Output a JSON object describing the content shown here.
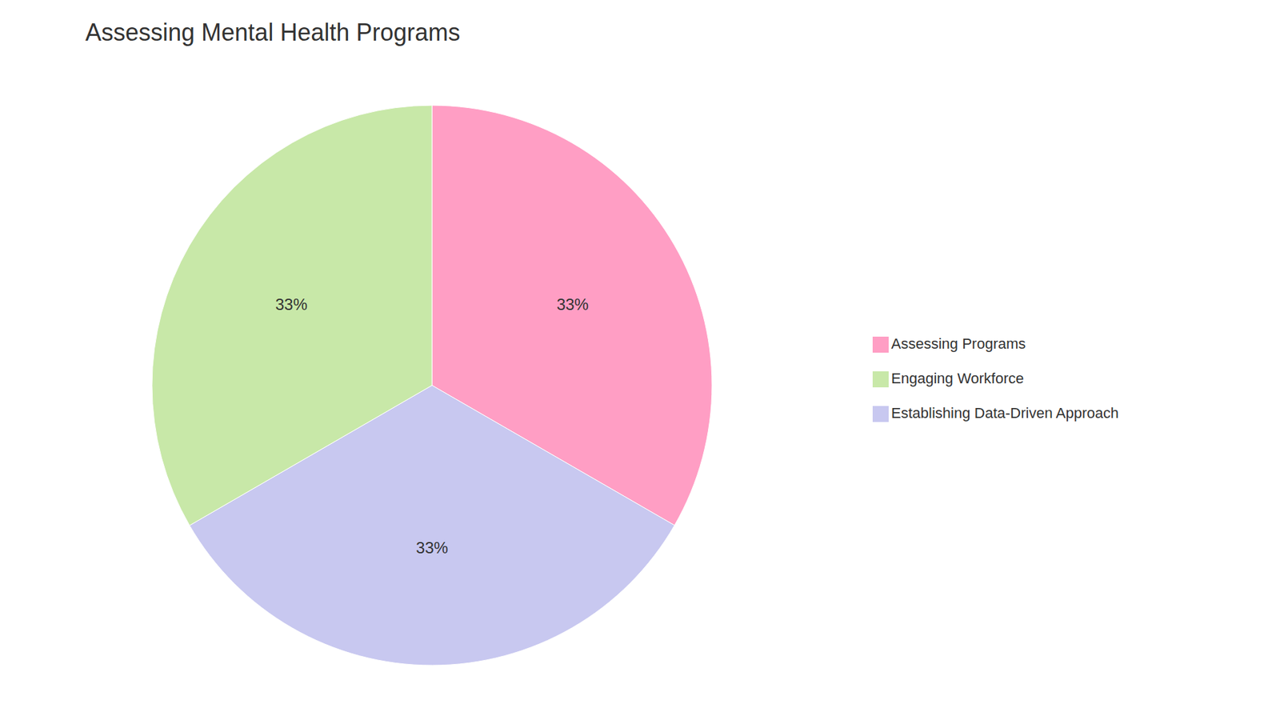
{
  "chart_data": {
    "type": "pie",
    "title": "Assessing Mental Health Programs",
    "categories": [
      "Assessing Programs",
      "Establishing Data-Driven Approach",
      "Engaging Workforce"
    ],
    "values": [
      33.33,
      33.33,
      33.34
    ],
    "value_labels": [
      "33%",
      "33%",
      "33%"
    ],
    "colors": [
      "#FF9EC4",
      "#C8C8F0",
      "#C8E8A8"
    ],
    "data_labels": true,
    "legend": "right"
  }
}
